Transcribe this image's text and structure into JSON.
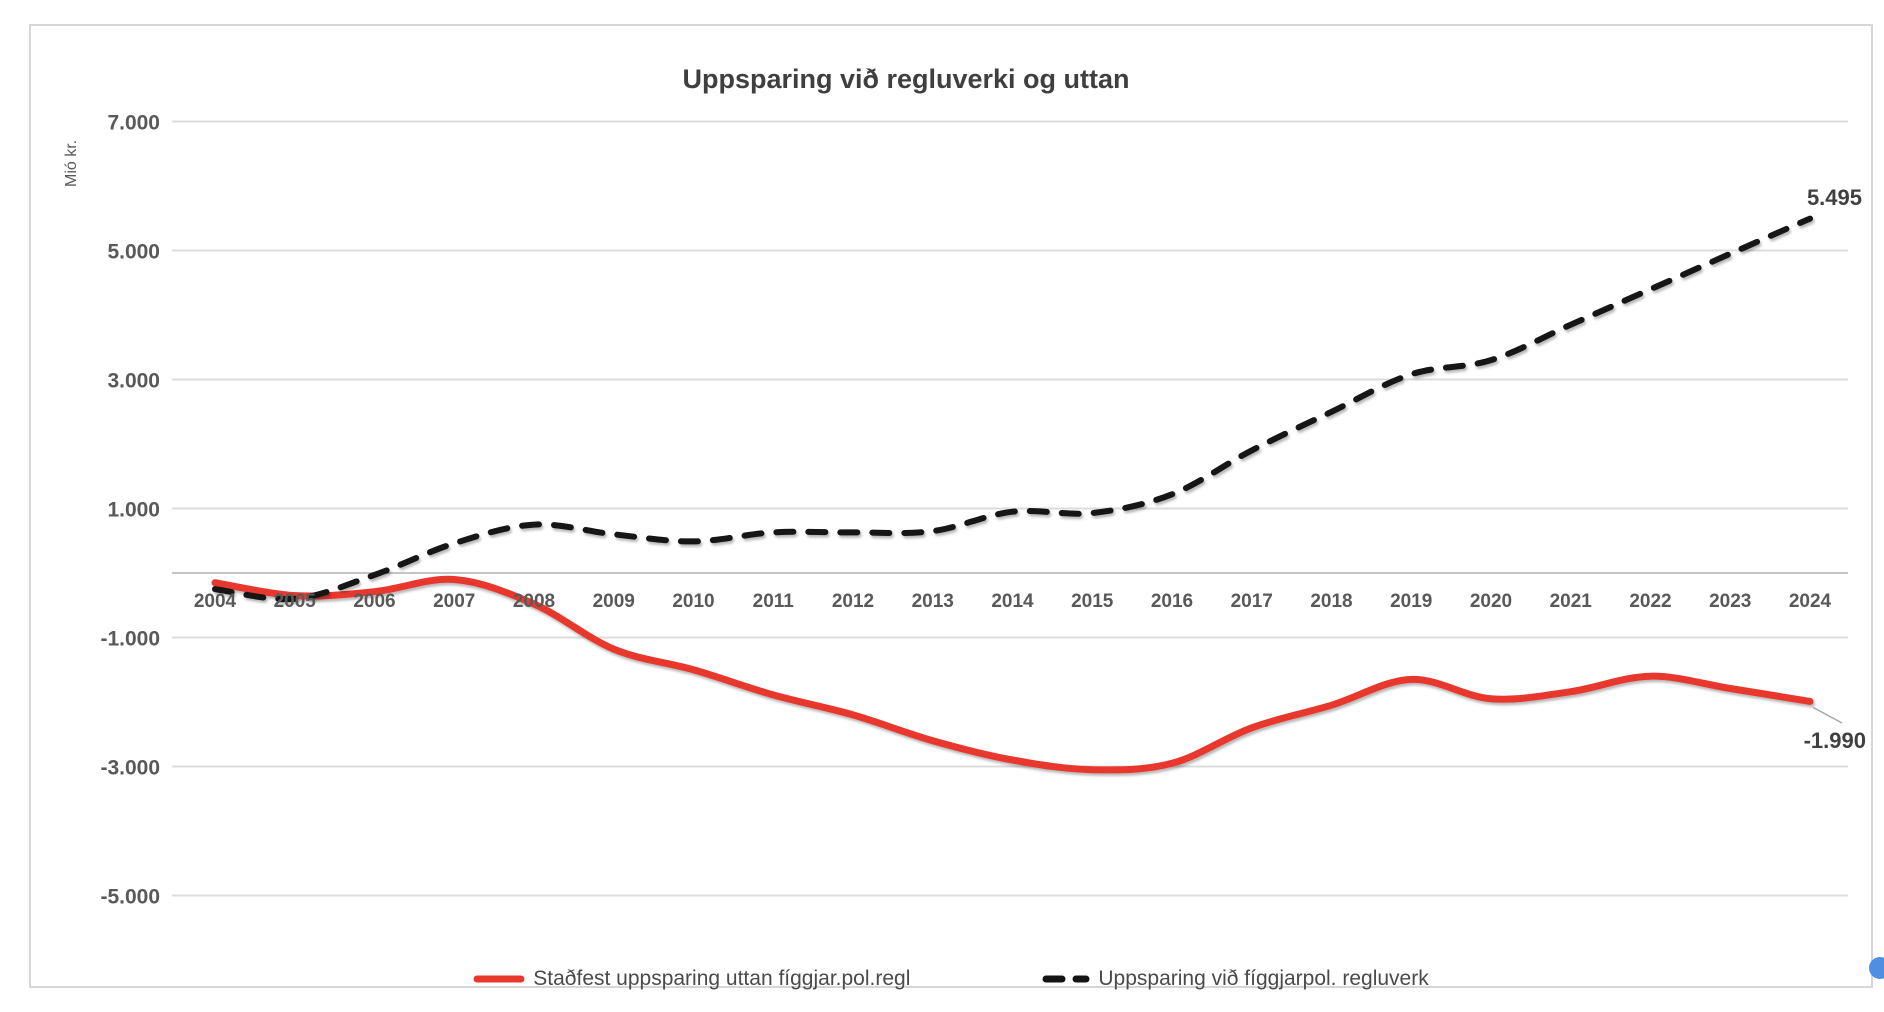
{
  "chart_data": {
    "type": "line",
    "title": "Uppsparing við regluverki og uttan",
    "xlabel": "",
    "ylabel": "Mió kr.",
    "x": [
      2004,
      2005,
      2006,
      2007,
      2008,
      2009,
      2010,
      2011,
      2012,
      2013,
      2014,
      2015,
      2016,
      2017,
      2018,
      2019,
      2020,
      2021,
      2022,
      2023,
      2024
    ],
    "series": [
      {
        "name": "Staðfest uppsparing uttan fíggjar.pol.regl",
        "style": "solid",
        "color": "#e8382d",
        "values": [
          -150,
          -350,
          -290,
          -100,
          -480,
          -1180,
          -1500,
          -1890,
          -2200,
          -2600,
          -2900,
          -3050,
          -2950,
          -2400,
          -2050,
          -1650,
          -1950,
          -1840,
          -1600,
          -1790,
          -1990
        ],
        "end_label": "-1.990"
      },
      {
        "name": "Uppsparing við fíggjarpol. regluverk",
        "style": "dashed",
        "color": "#141414",
        "values": [
          -250,
          -400,
          -30,
          460,
          750,
          600,
          490,
          630,
          630,
          650,
          950,
          930,
          1220,
          1900,
          2500,
          3080,
          3300,
          3850,
          4400,
          4950,
          5495
        ],
        "end_label": "5.495"
      }
    ],
    "ylim": [
      -5000,
      7000
    ],
    "y_ticks": [
      {
        "value": 7000,
        "label": "7.000"
      },
      {
        "value": 5000,
        "label": "5.000"
      },
      {
        "value": 3000,
        "label": "3.000"
      },
      {
        "value": 1000,
        "label": "1.000"
      },
      {
        "value": -1000,
        "label": "-1.000"
      },
      {
        "value": -3000,
        "label": "-3.000"
      },
      {
        "value": -5000,
        "label": "-5.000"
      }
    ],
    "grid": "horizontal",
    "zero_axis": true,
    "legend_position": "bottom",
    "smoothed": true
  },
  "colors": {
    "grid": "#dcdcdc",
    "zero_axis": "#c4c4c4",
    "leader_line": "#a6a6a6",
    "chart_border": "#d6d6d6",
    "handle_blue": "#4d90e2"
  }
}
